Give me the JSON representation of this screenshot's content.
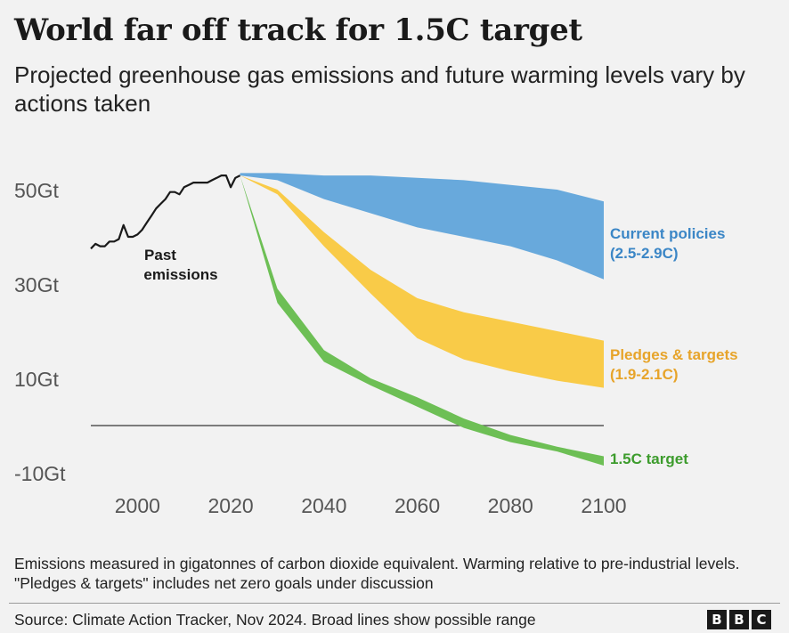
{
  "header": {
    "title": "World far off track for 1.5C target",
    "subtitle": "Projected greenhouse gas emissions and future warming levels vary by actions taken"
  },
  "footer": {
    "note": "Emissions measured in gigatonnes of carbon dioxide equivalent. Warming relative to pre-industrial levels. \"Pledges & targets\" includes net zero goals under discussion",
    "source": "Source: Climate Action Tracker, Nov 2024. Broad lines show possible range",
    "logo_letters": [
      "B",
      "B",
      "C"
    ]
  },
  "chart_data": {
    "type": "area",
    "x_ticks": [
      2000,
      2020,
      2040,
      2060,
      2080,
      2100
    ],
    "y_ticks": [
      50,
      30,
      10,
      -10
    ],
    "y_tick_labels": [
      "50Gt",
      "30Gt",
      "10Gt",
      "-10Gt"
    ],
    "xlim": [
      1990,
      2100
    ],
    "ylim": [
      -14,
      58
    ],
    "zero_line": true,
    "grid": false,
    "past_emissions": {
      "label": "Past emissions",
      "color": "#1a1a1a",
      "x": [
        1990,
        1991,
        1992,
        1993,
        1994,
        1995,
        1996,
        1997,
        1998,
        1999,
        2000,
        2001,
        2002,
        2003,
        2004,
        2005,
        2006,
        2007,
        2008,
        2009,
        2010,
        2011,
        2012,
        2013,
        2014,
        2015,
        2016,
        2017,
        2018,
        2019,
        2020,
        2021,
        2022
      ],
      "y": [
        37.5,
        38.5,
        38,
        38,
        39,
        39,
        39.5,
        42.5,
        40,
        40,
        40.5,
        41.5,
        43,
        44.5,
        46,
        47,
        48,
        49.5,
        49.5,
        49,
        50.5,
        51,
        51.5,
        51.5,
        51.5,
        51.5,
        52,
        52.5,
        53,
        53,
        50.5,
        52.5,
        53
      ]
    },
    "series": [
      {
        "name": "Current policies",
        "range_label": "(2.5-2.9C)",
        "color": "#68a9dc",
        "label_color": "#3b86c6",
        "x": [
          2022,
          2030,
          2040,
          2050,
          2060,
          2070,
          2080,
          2090,
          2100
        ],
        "upper": [
          53.5,
          53.5,
          53,
          53,
          52.5,
          52,
          51,
          50,
          47.5
        ],
        "lower": [
          53,
          52,
          48,
          45,
          42,
          40,
          38,
          35,
          31
        ]
      },
      {
        "name": "Pledges & targets",
        "range_label": "(1.9-2.1C)",
        "color": "#f9cb48",
        "label_color": "#e7a42a",
        "x": [
          2022,
          2030,
          2040,
          2050,
          2060,
          2070,
          2080,
          2090,
          2100
        ],
        "upper": [
          53,
          50,
          41,
          33,
          27,
          24,
          22,
          20,
          18
        ],
        "lower": [
          53,
          49,
          38,
          28,
          18.5,
          14,
          11.5,
          9.5,
          8
        ]
      },
      {
        "name": "1.5C target",
        "range_label": "",
        "color": "#6dbf55",
        "label_color": "#3d9c2d",
        "x": [
          2022,
          2030,
          2040,
          2050,
          2060,
          2070,
          2080,
          2090,
          2100
        ],
        "upper": [
          53,
          29,
          16,
          10,
          6,
          1.5,
          -2,
          -4.5,
          -6.5
        ],
        "lower": [
          53,
          26,
          13.5,
          8.5,
          4,
          -0.5,
          -3.5,
          -5.5,
          -8.5
        ]
      }
    ]
  }
}
